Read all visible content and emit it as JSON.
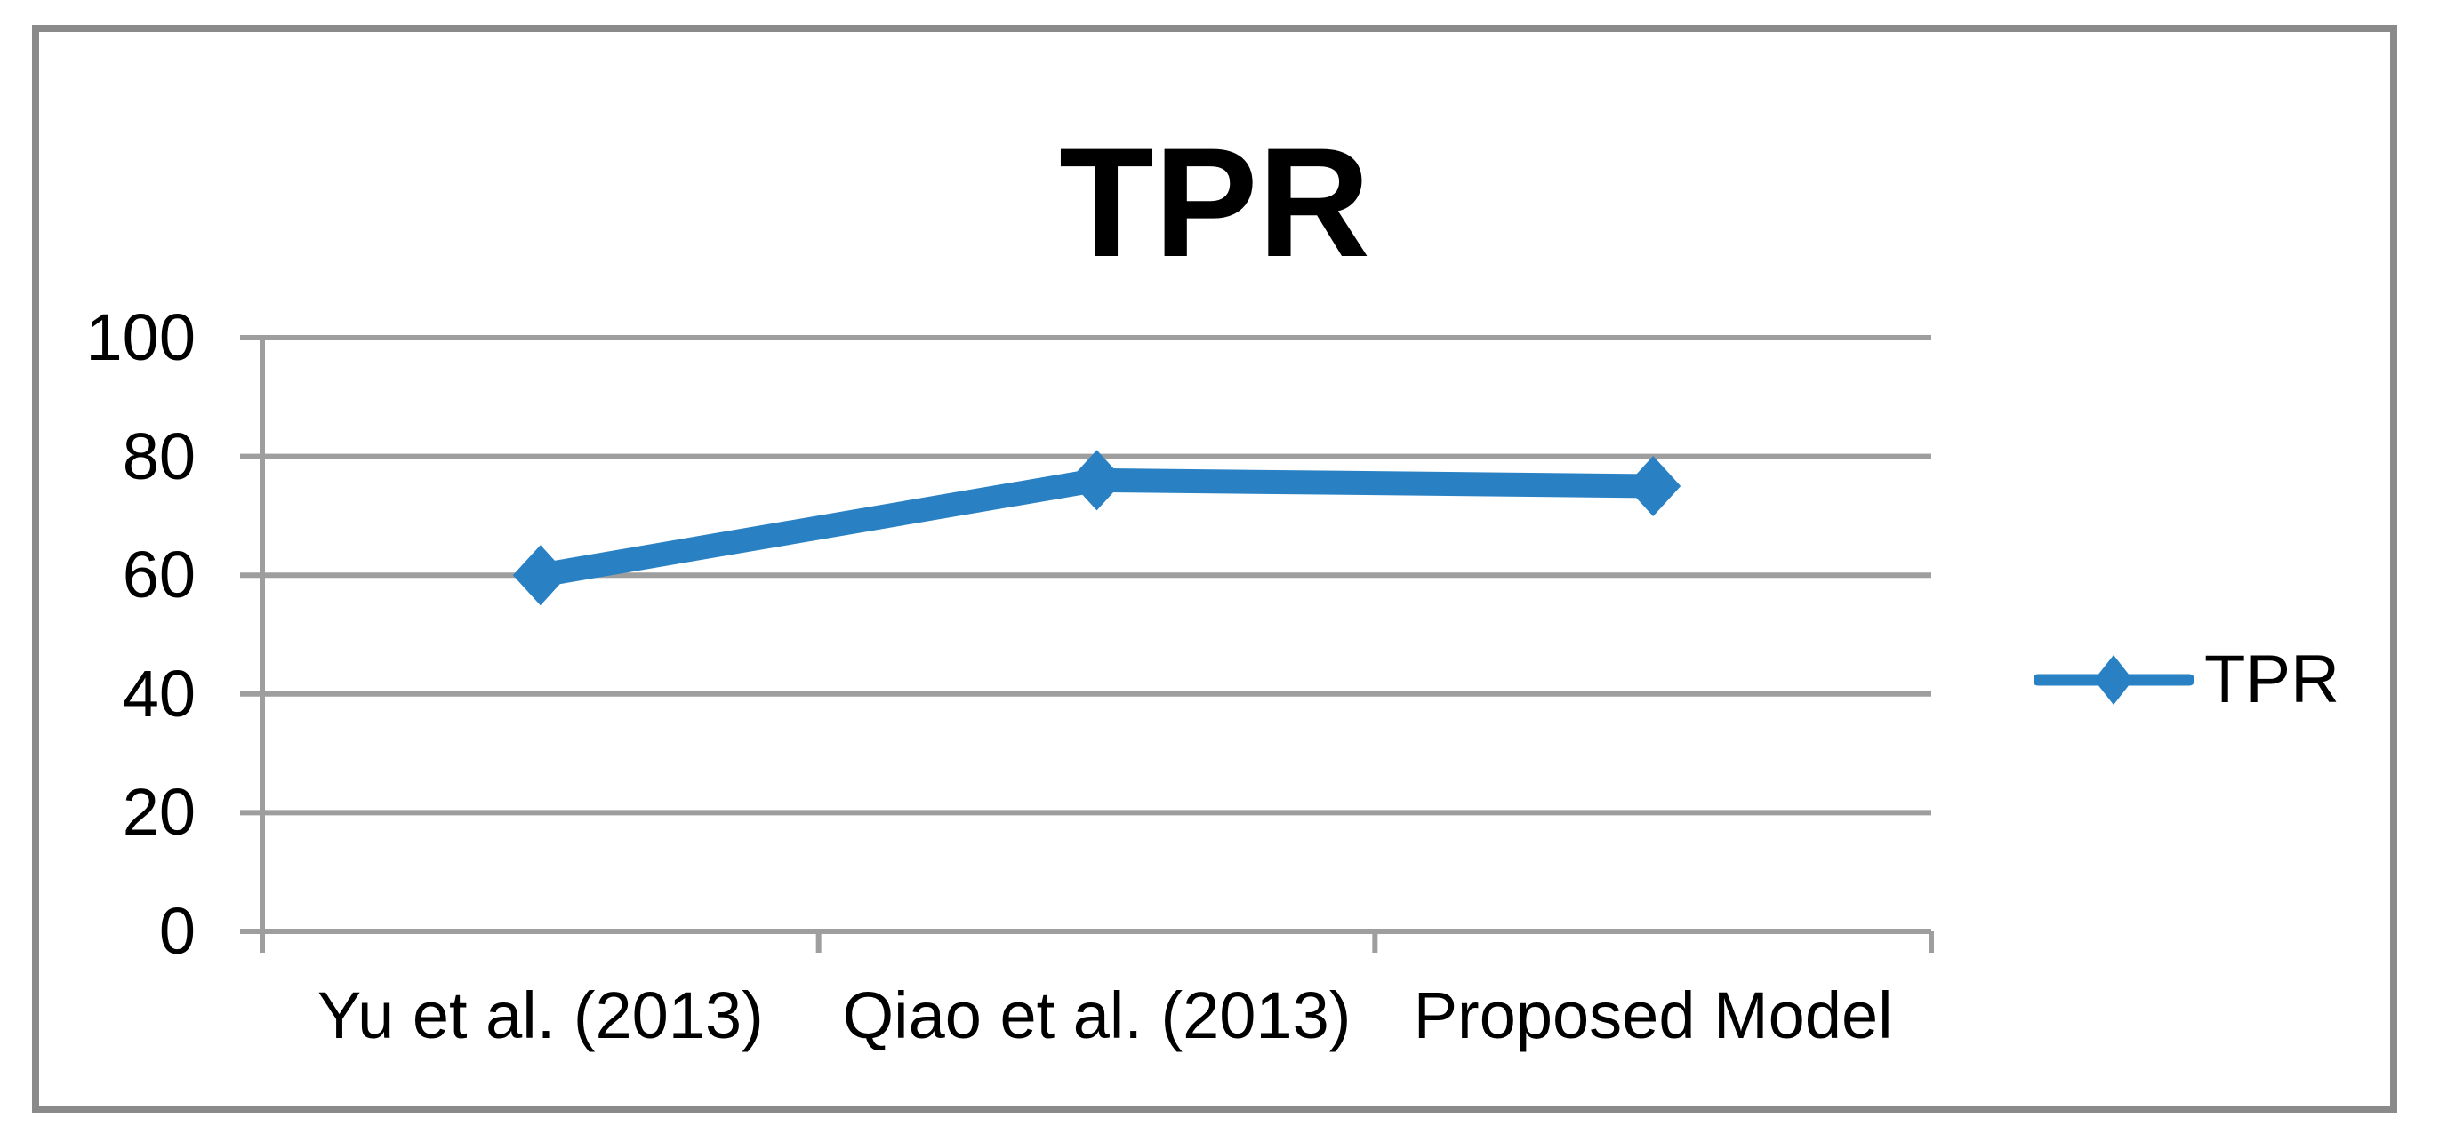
{
  "chart_data": {
    "type": "line",
    "title": "TPR",
    "categories": [
      "Yu et al. (2013)",
      "Qiao  et al. (2013)",
      "Proposed Model"
    ],
    "series": [
      {
        "name": "TPR",
        "values": [
          60,
          76,
          75
        ]
      }
    ],
    "xlabel": "",
    "ylabel": "",
    "ylim": [
      0,
      100
    ],
    "yticks": [
      0,
      20,
      40,
      60,
      80,
      100
    ],
    "grid": true,
    "legend_position": "right",
    "marker": "diamond",
    "colors": {
      "series": "#2981c4",
      "gridline": "#9e9e9e",
      "frame": "#8a8a8a",
      "text": "#000000",
      "background": "#ffffff"
    }
  }
}
